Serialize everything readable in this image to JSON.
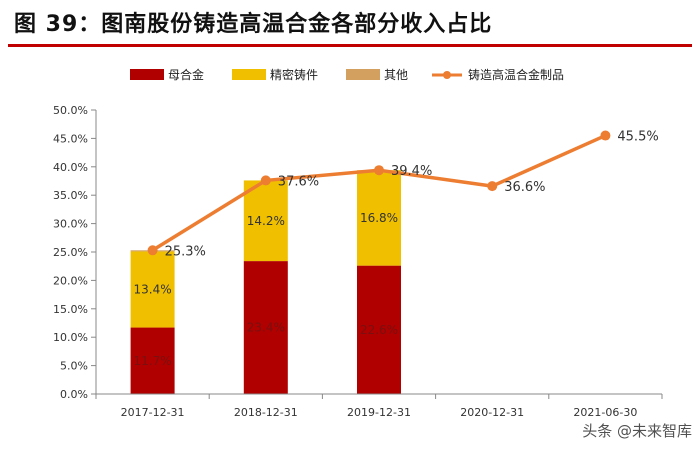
{
  "title": "图 39：图南股份铸造高温合金各部分收入占比",
  "watermark": "头条 @未来智库",
  "chart_data": {
    "type": "bar+line",
    "categories": [
      "2017-12-31",
      "2018-12-31",
      "2019-12-31",
      "2020-12-31",
      "2021-06-30"
    ],
    "ylim": [
      0,
      50
    ],
    "ytick_labels": [
      "0.0%",
      "5.0%",
      "10.0%",
      "15.0%",
      "20.0%",
      "25.0%",
      "30.0%",
      "35.0%",
      "40.0%",
      "45.0%",
      "50.0%"
    ],
    "grid": false,
    "legend_position": "top",
    "bar_series": [
      {
        "name": "母合金",
        "color": "#b00000",
        "values": [
          11.7,
          23.4,
          22.6,
          null,
          null
        ],
        "labels": [
          "11.7%",
          "23.4%",
          "22.6%",
          "",
          ""
        ]
      },
      {
        "name": "精密铸件",
        "color": "#f0c000",
        "values": [
          13.4,
          14.2,
          16.8,
          null,
          null
        ],
        "labels": [
          "13.4%",
          "14.2%",
          "16.8%",
          "",
          ""
        ]
      },
      {
        "name": "其他",
        "color": "#d4a060",
        "values": [
          0.2,
          0.0,
          0.0,
          null,
          null
        ],
        "labels": [
          "",
          "",
          "",
          "",
          ""
        ]
      }
    ],
    "line_series": {
      "name": "铸造高温合金制品",
      "color": "#ed7d31",
      "values": [
        25.3,
        37.6,
        39.4,
        36.6,
        45.5
      ],
      "labels": [
        "25.3%",
        "37.6%",
        "39.4%",
        "36.6%",
        "45.5%"
      ]
    }
  }
}
